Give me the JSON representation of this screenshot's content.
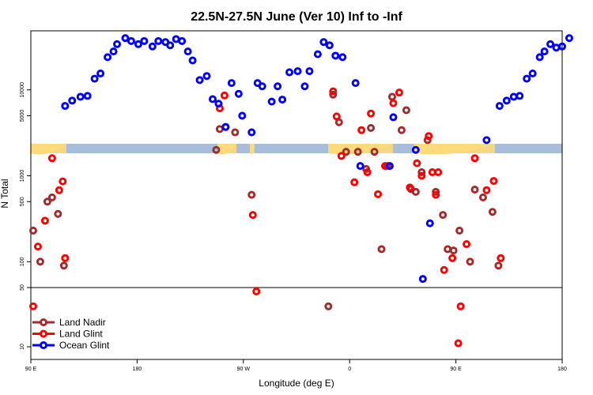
{
  "chart_data": {
    "type": "scatter",
    "title": "22.5N-27.5N June (Ver 10)   Inf to -Inf",
    "xlabel": "Longitude (deg E)",
    "ylabel": "N Total",
    "xlim": [
      90,
      540
    ],
    "x_ticks": [
      {
        "value": 90,
        "label": "90 E"
      },
      {
        "value": 180,
        "label": "180"
      },
      {
        "value": 270,
        "label": "90 W"
      },
      {
        "value": 360,
        "label": "0"
      },
      {
        "value": 450,
        "label": "90 E"
      },
      {
        "value": 540,
        "label": "180"
      }
    ],
    "y_scale": "log",
    "y_ticks_upper": [
      {
        "value": 100,
        "label": "100"
      },
      {
        "value": 500,
        "label": "500"
      },
      {
        "value": 1000,
        "label": "1000"
      },
      {
        "value": 5000,
        "label": "5000"
      },
      {
        "value": 10000,
        "label": "10000"
      }
    ],
    "y_ticks_lower": [
      {
        "value": 10,
        "label": "10"
      },
      {
        "value": 50,
        "label": "50"
      }
    ],
    "legend_position": "bottom-left",
    "series": [
      {
        "name": "Land Nadir",
        "color": "#a52a2a",
        "points": [
          [
            92,
            230
          ],
          [
            98,
            100
          ],
          [
            104,
            500
          ],
          [
            108,
            560
          ],
          [
            113,
            360
          ],
          [
            118,
            90
          ],
          [
            247,
            2000
          ],
          [
            250,
            3500
          ],
          [
            255,
            3700
          ],
          [
            263,
            3200
          ],
          [
            277,
            600
          ],
          [
            342,
            30
          ],
          [
            346,
            8800
          ],
          [
            351,
            4200
          ],
          [
            357,
            1900
          ],
          [
            367,
            1900
          ],
          [
            374,
            1200
          ],
          [
            378,
            3600
          ],
          [
            381,
            1900
          ],
          [
            387,
            140
          ],
          [
            392,
            1300
          ],
          [
            396,
            8300
          ],
          [
            404,
            3400
          ],
          [
            408,
            5800
          ],
          [
            412,
            700
          ],
          [
            416,
            650
          ],
          [
            421,
            1100
          ],
          [
            426,
            2600
          ],
          [
            433,
            650
          ],
          [
            439,
            350
          ],
          [
            443,
            140
          ],
          [
            448,
            135
          ],
          [
            453,
            230
          ],
          [
            462,
            100
          ],
          [
            466,
            690
          ],
          [
            473,
            560
          ],
          [
            481,
            380
          ],
          [
            486,
            90
          ]
        ]
      },
      {
        "name": "Land Glint",
        "color": "#ff0000",
        "points": [
          [
            92,
            30
          ],
          [
            96,
            150
          ],
          [
            102,
            300
          ],
          [
            108,
            1600
          ],
          [
            114,
            680
          ],
          [
            117,
            860
          ],
          [
            119,
            110
          ],
          [
            250,
            6100
          ],
          [
            254,
            8600
          ],
          [
            278,
            350
          ],
          [
            281,
            45
          ],
          [
            346,
            9600
          ],
          [
            349,
            4900
          ],
          [
            353,
            1700
          ],
          [
            364,
            840
          ],
          [
            370,
            3400
          ],
          [
            375,
            1100
          ],
          [
            378,
            5300
          ],
          [
            384,
            610
          ],
          [
            390,
            1300
          ],
          [
            397,
            7000
          ],
          [
            402,
            9300
          ],
          [
            411,
            730
          ],
          [
            417,
            1400
          ],
          [
            421,
            1000
          ],
          [
            427,
            2900
          ],
          [
            430,
            1100
          ],
          [
            433,
            600
          ],
          [
            435,
            1100
          ],
          [
            440,
            80
          ],
          [
            447,
            110
          ],
          [
            452,
            11
          ],
          [
            454,
            30
          ],
          [
            459,
            160
          ],
          [
            466,
            1600
          ],
          [
            476,
            680
          ],
          [
            482,
            870
          ],
          [
            488,
            110
          ]
        ]
      },
      {
        "name": "Ocean Glint",
        "color": "#0000ff",
        "points": [
          [
            119,
            6500
          ],
          [
            125,
            7500
          ],
          [
            132,
            8300
          ],
          [
            138,
            8500
          ],
          [
            144,
            13500
          ],
          [
            149,
            15500
          ],
          [
            155,
            24000
          ],
          [
            160,
            28000
          ],
          [
            163,
            34000
          ],
          [
            170,
            40000
          ],
          [
            175,
            37000
          ],
          [
            181,
            34000
          ],
          [
            186,
            37000
          ],
          [
            193,
            32000
          ],
          [
            198,
            37000
          ],
          [
            204,
            36000
          ],
          [
            208,
            33000
          ],
          [
            213,
            39000
          ],
          [
            218,
            37000
          ],
          [
            223,
            28000
          ],
          [
            227,
            22000
          ],
          [
            233,
            13000
          ],
          [
            239,
            14500
          ],
          [
            244,
            7800
          ],
          [
            249,
            6900
          ],
          [
            255,
            3700
          ],
          [
            260,
            12000
          ],
          [
            266,
            9000
          ],
          [
            269,
            5000
          ],
          [
            277,
            3200
          ],
          [
            282,
            12000
          ],
          [
            286,
            11000
          ],
          [
            294,
            7300
          ],
          [
            299,
            11000
          ],
          [
            303,
            7700
          ],
          [
            309,
            16000
          ],
          [
            316,
            16500
          ],
          [
            322,
            11000
          ],
          [
            326,
            16500
          ],
          [
            333,
            26000
          ],
          [
            338,
            36000
          ],
          [
            343,
            33000
          ],
          [
            348,
            25000
          ],
          [
            354,
            24000
          ],
          [
            365,
            12000
          ],
          [
            369,
            1300
          ],
          [
            394,
            1300
          ],
          [
            397,
            4800
          ],
          [
            416,
            2000
          ],
          [
            422,
            63
          ],
          [
            428,
            280
          ],
          [
            476,
            2600
          ],
          [
            487,
            6500
          ],
          [
            493,
            7500
          ],
          [
            499,
            8300
          ],
          [
            504,
            8500
          ],
          [
            510,
            13500
          ],
          [
            515,
            15500
          ],
          [
            521,
            24000
          ],
          [
            525,
            28000
          ],
          [
            530,
            34000
          ],
          [
            535,
            31000
          ],
          [
            540,
            32000
          ],
          [
            546,
            40000
          ]
        ]
      }
    ]
  }
}
